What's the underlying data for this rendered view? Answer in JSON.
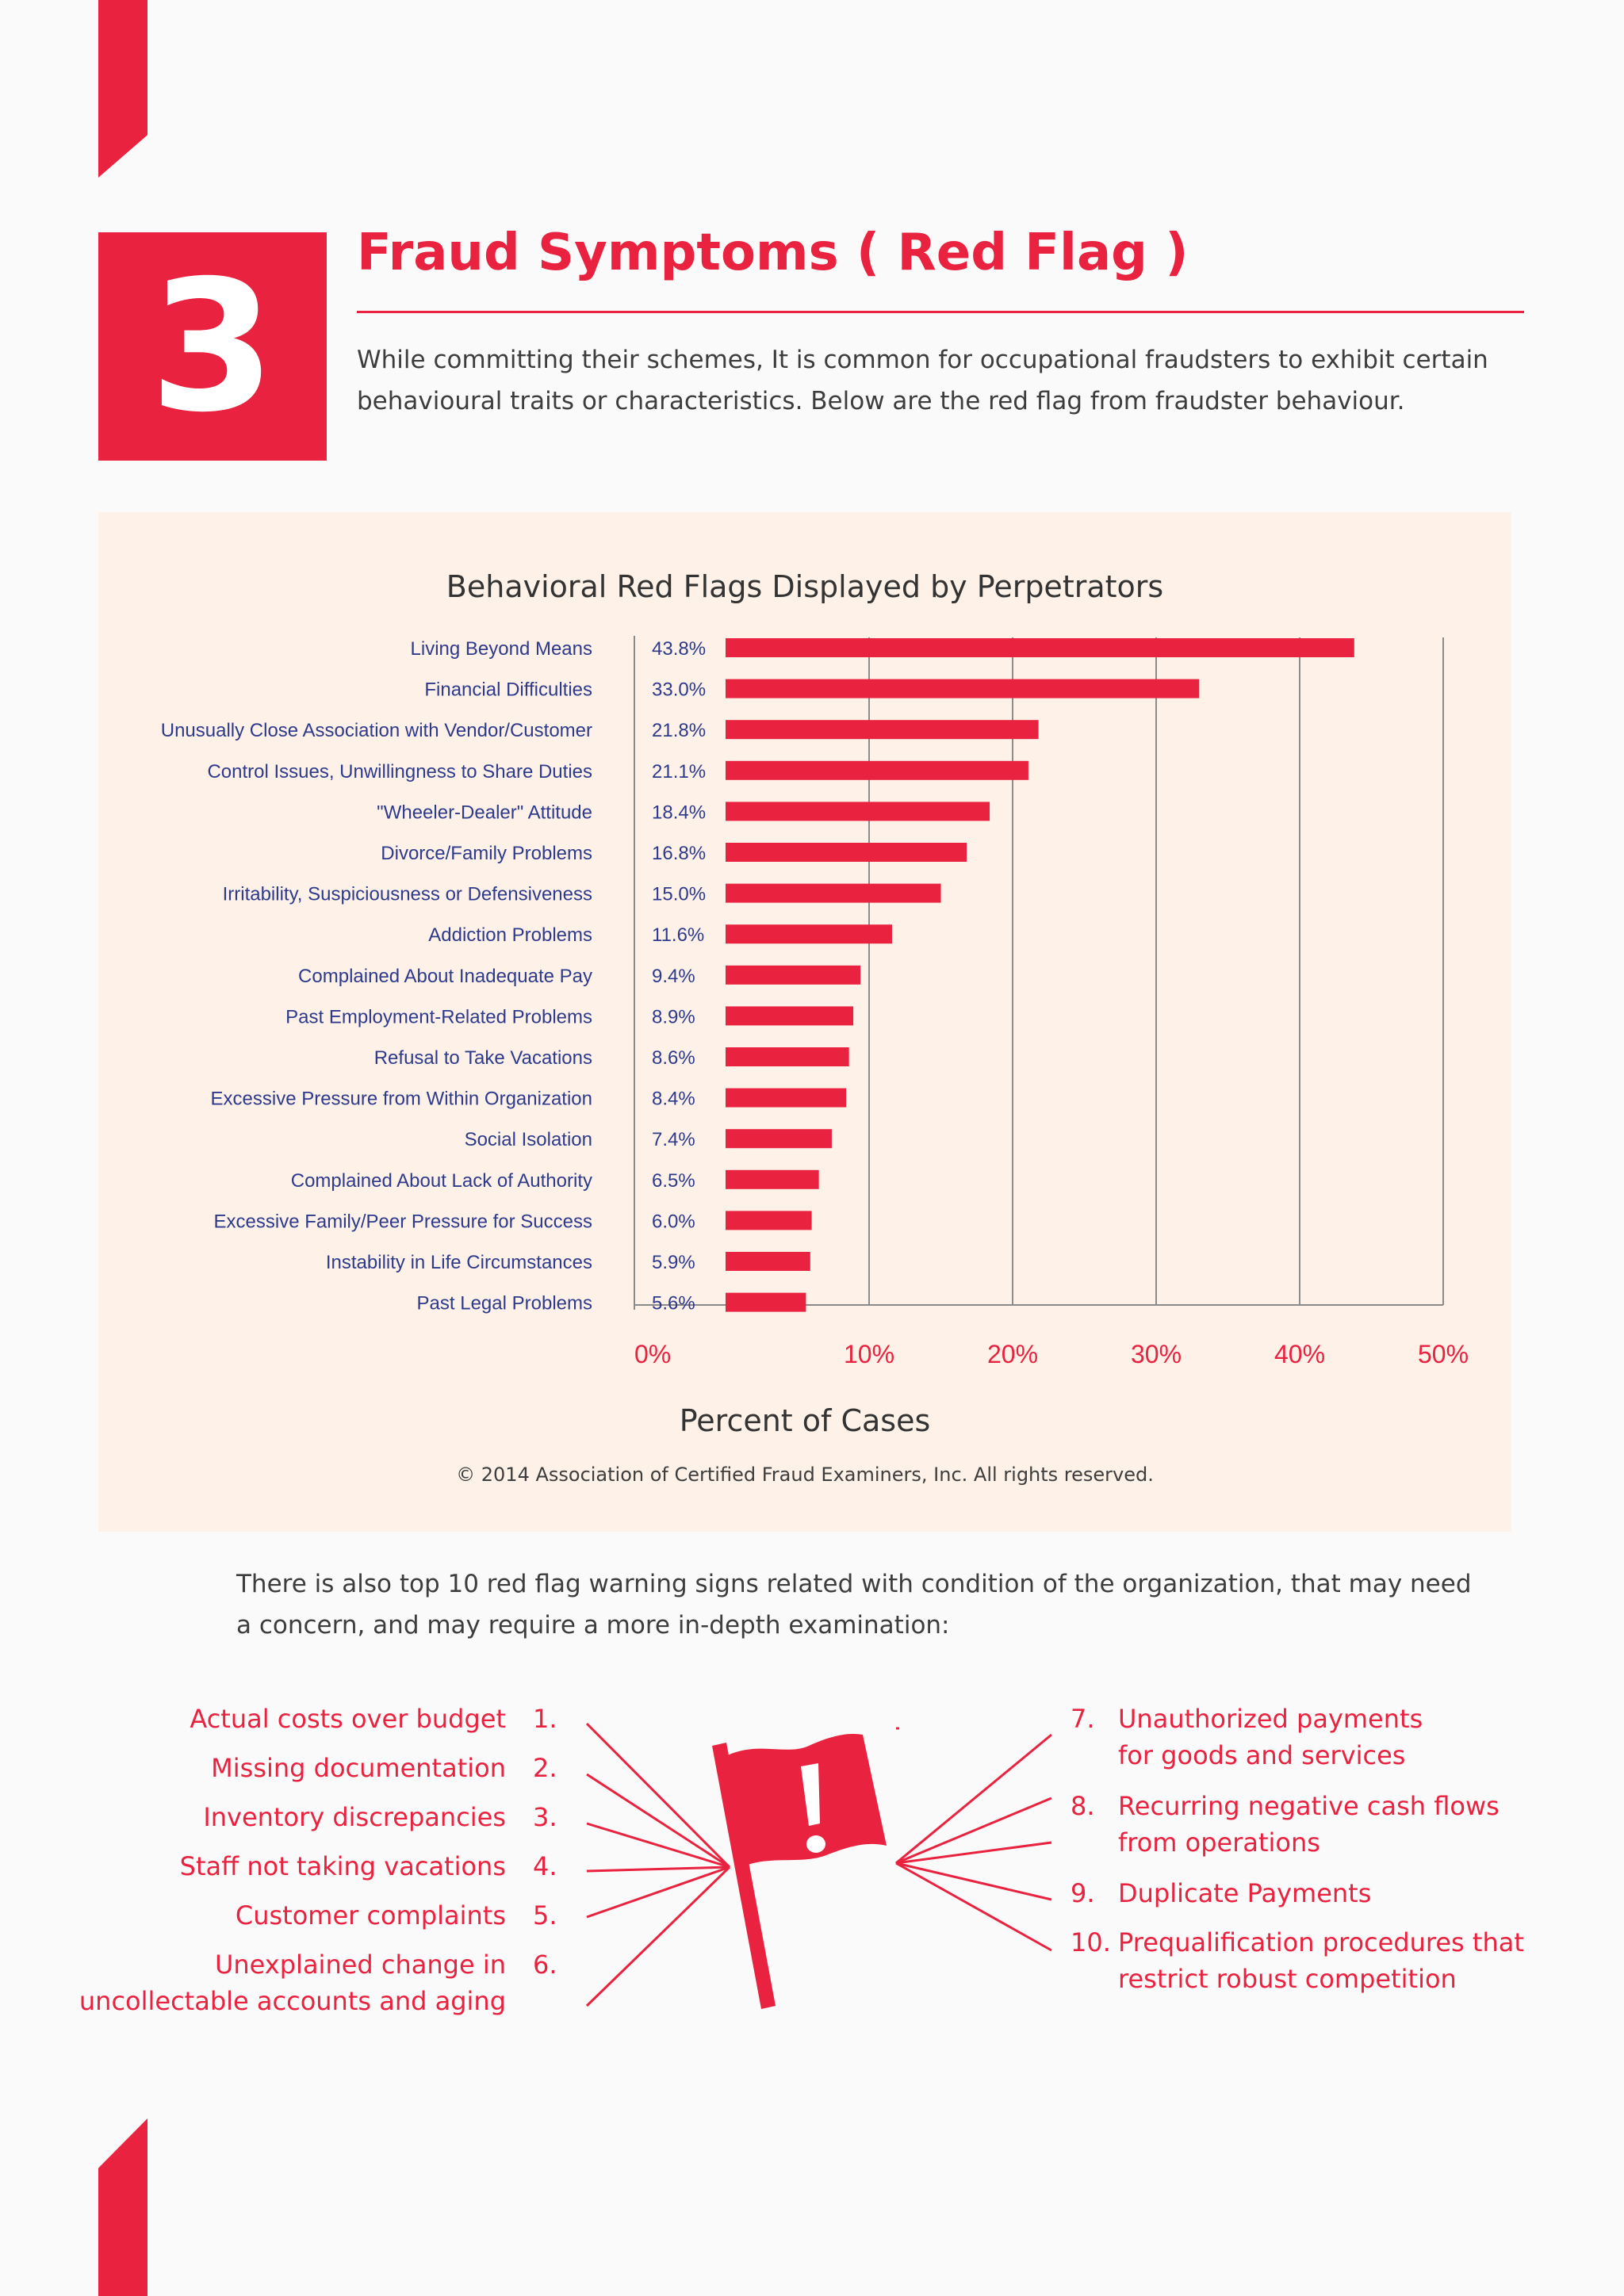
{
  "section": {
    "number": "3",
    "title": "Fraud Symptoms ( Red Flag )",
    "intro": "While committing their schemes, It is common for occupational fraudsters to exhibit certain behavioural traits or characteristics. Below are the red flag from fraudster behaviour."
  },
  "chart_data": {
    "type": "bar",
    "orientation": "horizontal",
    "title": "Behavioral Red Flags Displayed by Perpetrators",
    "xlabel": "Percent of Cases",
    "ylabel": "",
    "xlim": [
      0,
      50
    ],
    "x_ticks": [
      "0%",
      "10%",
      "20%",
      "30%",
      "40%",
      "50%"
    ],
    "grid": "vertical",
    "bar_color": "#e8223f",
    "categories": [
      "Living Beyond Means",
      "Financial Difficulties",
      "Unusually Close Association with Vendor/Customer",
      "Control Issues, Unwillingness to Share Duties",
      "\"Wheeler-Dealer\" Attitude",
      "Divorce/Family Problems",
      "Irritability, Suspiciousness or Defensiveness",
      "Addiction Problems",
      "Complained About Inadequate Pay",
      "Past Employment-Related Problems",
      "Refusal to Take Vacations",
      "Excessive Pressure from Within Organization",
      "Social Isolation",
      "Complained About Lack of Authority",
      "Excessive Family/Peer Pressure for Success",
      "Instability in Life Circumstances",
      "Past Legal Problems"
    ],
    "values": [
      43.8,
      33.0,
      21.8,
      21.1,
      18.4,
      16.8,
      15.0,
      11.6,
      9.4,
      8.9,
      8.6,
      8.4,
      7.4,
      6.5,
      6.0,
      5.9,
      5.6
    ],
    "value_labels": [
      "43.8%",
      "33.0%",
      "21.8%",
      "21.1%",
      "18.4%",
      "16.8%",
      "15.0%",
      "11.6%",
      "9.4%",
      "8.9%",
      "8.6%",
      "8.4%",
      "7.4%",
      "6.5%",
      "6.0%",
      "5.9%",
      "5.6%"
    ],
    "copyright": "© 2014 Association of Certified Fraud Examiners, Inc. All rights reserved."
  },
  "org": {
    "text": "There is also top 10 red flag warning signs related with condition of the organization, that may need a concern, and may require a more in-depth examination:",
    "left_items": [
      {
        "num": "1.",
        "text": "Actual costs over budget"
      },
      {
        "num": "2.",
        "text": "Missing documentation"
      },
      {
        "num": "3.",
        "text": "Inventory discrepancies"
      },
      {
        "num": "4.",
        "text": "Staff not taking vacations"
      },
      {
        "num": "5.",
        "text": "Customer complaints"
      },
      {
        "num": "6.",
        "text": "Unexplained change in\nuncollectable accounts and aging"
      }
    ],
    "right_items": [
      {
        "num": "7.",
        "text": "Unauthorized payments\nfor goods and services"
      },
      {
        "num": "8.",
        "text": "Recurring negative cash flows\nfrom operations"
      },
      {
        "num": "9.",
        "text": "Duplicate Payments"
      },
      {
        "num": "10.",
        "text": "Prequalification procedures that\nrestrict robust competition"
      }
    ],
    "flag_icon": "red-flag-exclamation",
    "accent": "#e8223f"
  }
}
